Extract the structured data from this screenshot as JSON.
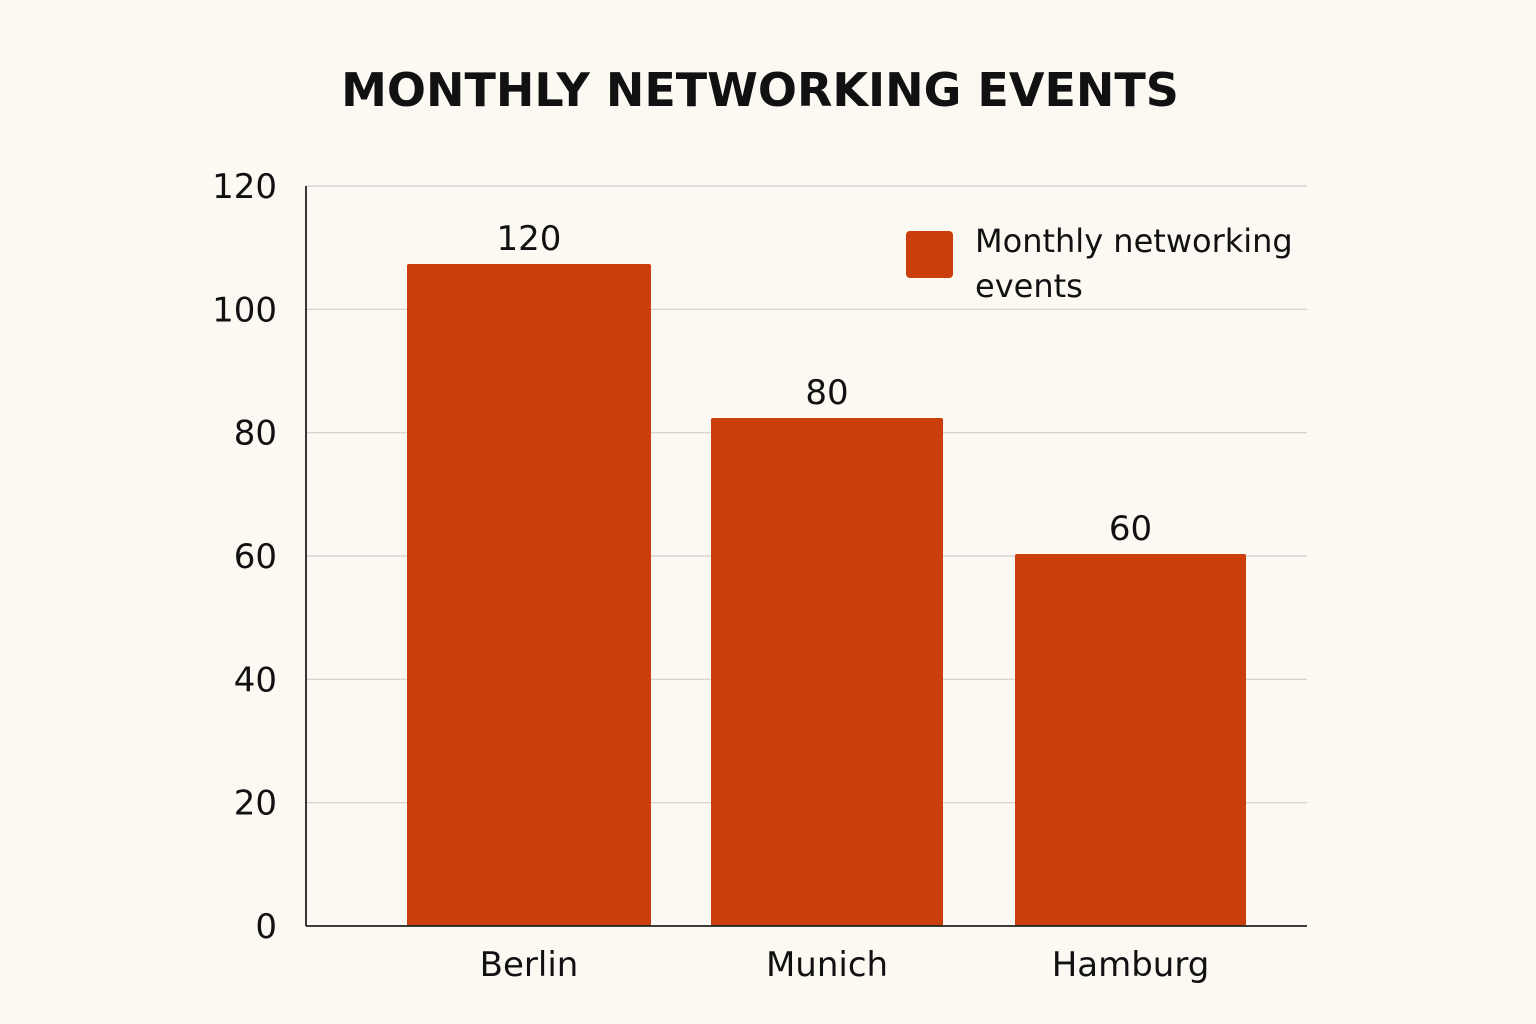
{
  "chart_data": {
    "type": "bar",
    "title": "MONTHLY NETWORKING EVENTS",
    "xlabel": "",
    "ylabel": "",
    "categories": [
      "Berlin",
      "Munich",
      "Hamburg"
    ],
    "series": [
      {
        "name": "Monthly networking events",
        "values": [
          120,
          80,
          60
        ],
        "color": "#cc3e0c"
      }
    ],
    "data_labels": [
      "120",
      "80",
      "60"
    ],
    "ylim": [
      0,
      120
    ],
    "yticks": [
      0,
      20,
      40,
      60,
      80,
      100,
      120
    ],
    "ytick_labels": [
      "0",
      "20",
      "40",
      "60",
      "80",
      "100",
      "120"
    ],
    "grid": true,
    "legend": {
      "placement": "top-right",
      "lines": [
        "Monthly networking",
        "events"
      ]
    }
  }
}
